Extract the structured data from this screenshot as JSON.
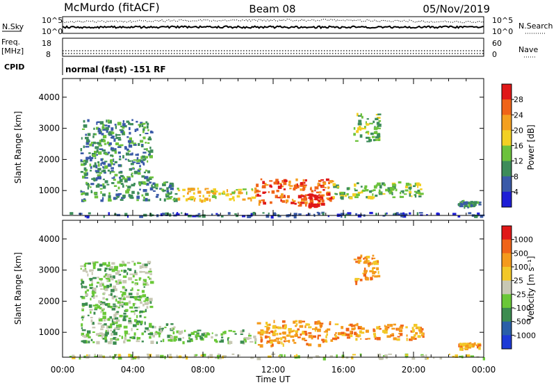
{
  "header": {
    "station": "McMurdo (fitACF)",
    "beam": "Beam 08",
    "date": "05/Nov/2019"
  },
  "status_panels": {
    "nsky_label": "N.Sky",
    "nsky_ticks": [
      "10^5",
      "10^0"
    ],
    "nsearch_label": "N.Search",
    "nsearch_ticks": [
      "10^5",
      "10^0"
    ],
    "freq_label": "Freq.",
    "freq_unit": "[MHz]",
    "freq_ticks": [
      "18",
      "8"
    ],
    "nave_label": "Nave",
    "nave_ticks": [
      "60",
      "0"
    ],
    "cpid_label": "CPID",
    "cpid_text": "normal (fast) -151 RF"
  },
  "chart_data": [
    {
      "type": "heatmap",
      "name": "power-panel",
      "ylabel": "Slant Range [km]",
      "ylim": [
        200,
        4600
      ],
      "yticks": [
        "1000",
        "2000",
        "3000",
        "4000"
      ],
      "colorbar_label": "Power [dB]",
      "colorbar_ticks": [
        "4",
        "8",
        "12",
        "16",
        "20",
        "24",
        "28"
      ],
      "colorbar_colors": [
        "#1e1ed6",
        "#3a5aa8",
        "#3d8c5a",
        "#6cc23c",
        "#f2d023",
        "#f4a020",
        "#f06418",
        "#e01818"
      ],
      "regions": [
        {
          "time": [
            0.3,
            24.0
          ],
          "range": [
            200,
            320
          ],
          "level": 1
        },
        {
          "time": [
            1.0,
            6.5
          ],
          "range": [
            700,
            1300
          ],
          "level": 2
        },
        {
          "time": [
            6.5,
            11.0
          ],
          "range": [
            700,
            1100
          ],
          "level": 4
        },
        {
          "time": [
            11.0,
            15.3
          ],
          "range": [
            600,
            1400
          ],
          "level": 6
        },
        {
          "time": [
            13.2,
            14.8
          ],
          "range": [
            500,
            900
          ],
          "level": 7
        },
        {
          "time": [
            15.3,
            20.5
          ],
          "range": [
            800,
            1300
          ],
          "level": 3
        },
        {
          "time": [
            1.0,
            5.0
          ],
          "range": [
            1300,
            3300
          ],
          "level": 2
        },
        {
          "time": [
            16.5,
            18.0
          ],
          "range": [
            2600,
            3500
          ],
          "level": 3
        },
        {
          "time": [
            22.5,
            23.7
          ],
          "range": [
            500,
            700
          ],
          "level": 2
        }
      ]
    },
    {
      "type": "heatmap",
      "name": "velocity-panel",
      "ylabel": "Slant Range [km]",
      "xlabel": "Time UT",
      "ylim": [
        200,
        4600
      ],
      "yticks": [
        "1000",
        "2000",
        "3000",
        "4000"
      ],
      "xticks": [
        "00:00",
        "04:00",
        "08:00",
        "12:00",
        "16:00",
        "20:00",
        "00:00"
      ],
      "colorbar_label": "Velocity [m s⁻¹]",
      "colorbar_ticks": [
        "1000",
        "500",
        "100",
        "25",
        "-25",
        "-100",
        "-500",
        "-1000"
      ],
      "colorbar_colors": [
        "#1e3ad6",
        "#2a5fa8",
        "#3c8c50",
        "#6ac838",
        "#c8c8b4",
        "#f2c828",
        "#f49a1c",
        "#f06418",
        "#e01818"
      ],
      "regions": [
        {
          "time": [
            0.3,
            24.0
          ],
          "range": [
            200,
            320
          ],
          "level": 4
        },
        {
          "time": [
            1.0,
            6.5
          ],
          "range": [
            700,
            1300
          ],
          "level": 3
        },
        {
          "time": [
            6.5,
            11.0
          ],
          "range": [
            700,
            1100
          ],
          "level": 3
        },
        {
          "time": [
            11.0,
            15.3
          ],
          "range": [
            600,
            1400
          ],
          "level": 6
        },
        {
          "time": [
            15.3,
            20.5
          ],
          "range": [
            800,
            1300
          ],
          "level": 6
        },
        {
          "time": [
            1.0,
            5.0
          ],
          "range": [
            1300,
            3300
          ],
          "level": 3
        },
        {
          "time": [
            16.5,
            18.0
          ],
          "range": [
            2600,
            3500
          ],
          "level": 6
        },
        {
          "time": [
            22.5,
            23.7
          ],
          "range": [
            500,
            700
          ],
          "level": 6
        }
      ]
    }
  ]
}
